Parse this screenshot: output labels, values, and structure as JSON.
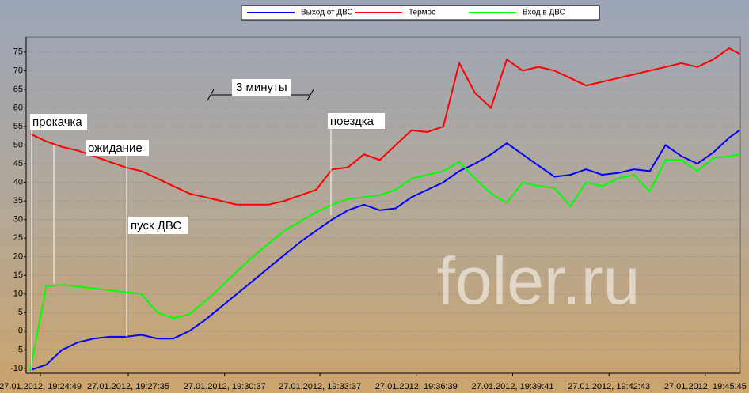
{
  "chart_data": {
    "type": "line",
    "x": [
      "19:24:30",
      "19:25:00",
      "19:25:30",
      "19:26:00",
      "19:26:30",
      "19:27:00",
      "19:27:30",
      "19:28:00",
      "19:28:30",
      "19:29:00",
      "19:29:30",
      "19:30:00",
      "19:30:30",
      "19:31:00",
      "19:31:30",
      "19:32:00",
      "19:32:30",
      "19:33:00",
      "19:33:30",
      "19:34:00",
      "19:34:30",
      "19:35:00",
      "19:35:30",
      "19:36:00",
      "19:36:30",
      "19:37:00",
      "19:37:30",
      "19:38:00",
      "19:38:30",
      "19:39:00",
      "19:39:30",
      "19:40:00",
      "19:40:30",
      "19:41:00",
      "19:41:30",
      "19:42:00",
      "19:42:30",
      "19:43:00",
      "19:43:30",
      "19:44:00",
      "19:44:30",
      "19:45:00",
      "19:45:30",
      "19:46:00",
      "19:46:30",
      "19:46:50"
    ],
    "series": [
      {
        "name": "Выход от ДВС",
        "color": "#0000ff",
        "values": [
          -10.5,
          -9,
          -5,
          -3,
          -2,
          -1.5,
          -1.5,
          -1,
          -2,
          -2,
          0,
          3,
          6.5,
          10,
          13.5,
          17,
          20.5,
          24,
          27,
          30,
          32.5,
          34,
          32.5,
          33,
          36,
          38,
          40,
          43,
          45,
          47.5,
          50.5,
          47.5,
          44.5,
          41.5,
          42,
          43.5,
          42,
          42.5,
          43.5,
          43,
          50,
          47,
          45,
          48,
          52,
          54
        ]
      },
      {
        "name": "Термос",
        "color": "#ff0000",
        "values": [
          53,
          51,
          49.5,
          48.5,
          47,
          45.5,
          44,
          43,
          41,
          39,
          37,
          36,
          35,
          34,
          34,
          34,
          35,
          36.5,
          38,
          43.5,
          44,
          47.5,
          46,
          50,
          54,
          53.5,
          55,
          72,
          64,
          60,
          73,
          70,
          71,
          70,
          68,
          66,
          67,
          68,
          69,
          70,
          71,
          72,
          71,
          73,
          76,
          74.5
        ]
      },
      {
        "name": "Вход в ДВС",
        "color": "#00ff00",
        "values": [
          -10.5,
          12,
          12.5,
          12,
          11.5,
          11,
          10.5,
          10,
          5,
          3.5,
          4.5,
          8,
          12,
          16,
          20,
          23.5,
          27,
          29.5,
          32,
          34,
          35.5,
          36,
          36.5,
          38,
          41,
          42,
          43,
          45.5,
          41,
          37,
          34.5,
          40,
          39,
          38.5,
          33.5,
          40,
          39,
          41,
          42,
          37.5,
          46,
          46,
          43,
          46.5,
          47,
          47.5
        ]
      }
    ],
    "xlim": [
      "19:24:22",
      "19:46:51"
    ],
    "xticks": [
      {
        "value": "19:24:49",
        "label": "27.01.2012, 19:24:49"
      },
      {
        "value": "19:27:35",
        "label": "27.01.2012, 19:27:35"
      },
      {
        "value": "19:30:37",
        "label": "27.01.2012, 19:30:37"
      },
      {
        "value": "19:33:37",
        "label": "27.01.2012, 19:33:37"
      },
      {
        "value": "19:36:39",
        "label": "27.01.2012, 19:36:39"
      },
      {
        "value": "19:39:41",
        "label": "27.01.2012, 19:39:41"
      },
      {
        "value": "19:42:43",
        "label": "27.01.2012, 19:42:43"
      },
      {
        "value": "19:45:45",
        "label": "27.01.2012, 19:45:45"
      }
    ],
    "ylim": [
      -11.3,
      79
    ],
    "yticks": [
      -10,
      -5,
      0,
      5,
      10,
      15,
      20,
      25,
      30,
      35,
      40,
      45,
      50,
      55,
      60,
      65,
      70,
      75
    ],
    "grid": true,
    "annotations": [
      "прокачка",
      "ожидание",
      "пуск ДВС",
      "поездка",
      "3 минуты"
    ],
    "watermark": "foler.ru"
  }
}
